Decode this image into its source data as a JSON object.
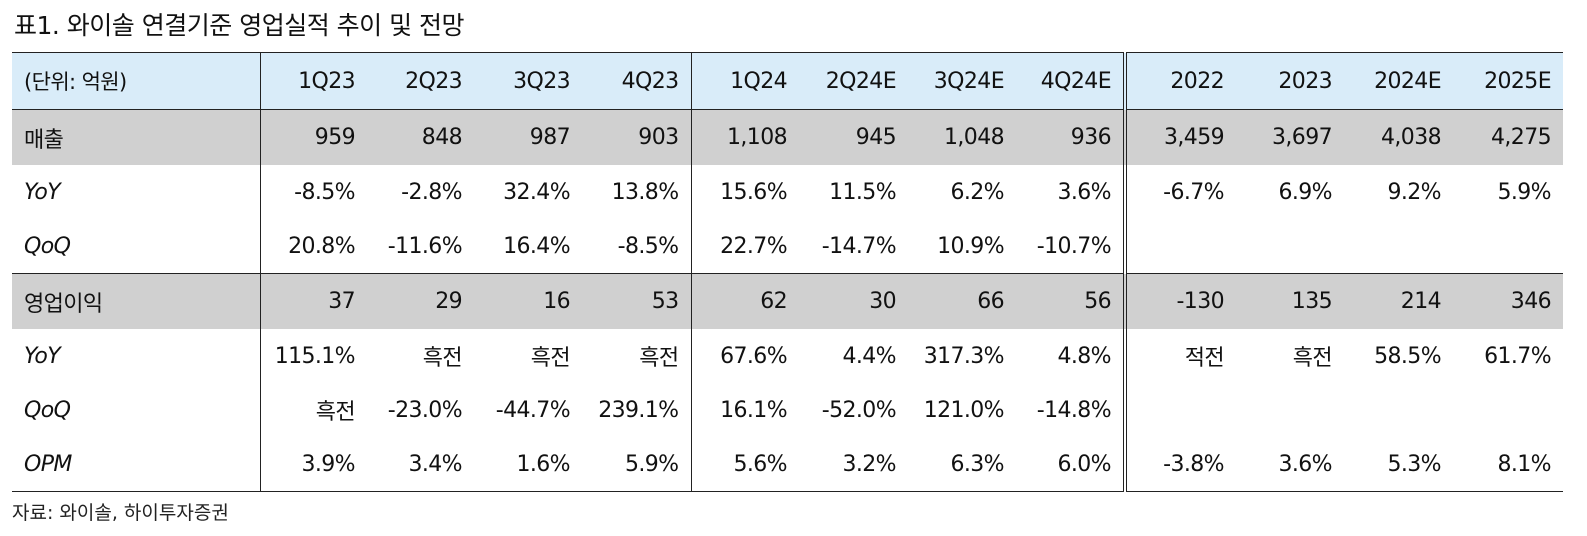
{
  "title": "표1.  와이솔 연결기준 영업실적 추이 및 전망",
  "unit_label": "(단위: 억원)",
  "columns": [
    "1Q23",
    "2Q23",
    "3Q23",
    "4Q23",
    "1Q24",
    "2Q24E",
    "3Q24E",
    "4Q24E",
    "2022",
    "2023",
    "2024E",
    "2025E"
  ],
  "rows": [
    {
      "label": "매출",
      "values": [
        "959",
        "848",
        "987",
        "903",
        "1,108",
        "945",
        "1,048",
        "936",
        "3,459",
        "3,697",
        "4,038",
        "4,275"
      ]
    },
    {
      "label": "YoY",
      "values": [
        "-8.5%",
        "-2.8%",
        "32.4%",
        "13.8%",
        "15.6%",
        "11.5%",
        "6.2%",
        "3.6%",
        "-6.7%",
        "6.9%",
        "9.2%",
        "5.9%"
      ]
    },
    {
      "label": "QoQ",
      "values": [
        "20.8%",
        "-11.6%",
        "16.4%",
        "-8.5%",
        "22.7%",
        "-14.7%",
        "10.9%",
        "-10.7%",
        "",
        "",
        "",
        ""
      ]
    },
    {
      "label": "영업이익",
      "values": [
        "37",
        "29",
        "16",
        "53",
        "62",
        "30",
        "66",
        "56",
        "-130",
        "135",
        "214",
        "346"
      ]
    },
    {
      "label": "YoY",
      "values": [
        "115.1%",
        "흑전",
        "흑전",
        "흑전",
        "67.6%",
        "4.4%",
        "317.3%",
        "4.8%",
        "적전",
        "흑전",
        "58.5%",
        "61.7%"
      ]
    },
    {
      "label": "QoQ",
      "values": [
        "흑전",
        "-23.0%",
        "-44.7%",
        "239.1%",
        "16.1%",
        "-52.0%",
        "121.0%",
        "-14.8%",
        "",
        "",
        "",
        ""
      ]
    },
    {
      "label": "OPM",
      "values": [
        "3.9%",
        "3.4%",
        "1.6%",
        "5.9%",
        "5.6%",
        "3.2%",
        "6.3%",
        "6.0%",
        "-3.8%",
        "3.6%",
        "5.3%",
        "8.1%"
      ]
    }
  ],
  "source": "자료: 와이솔, 하이투자증권"
}
